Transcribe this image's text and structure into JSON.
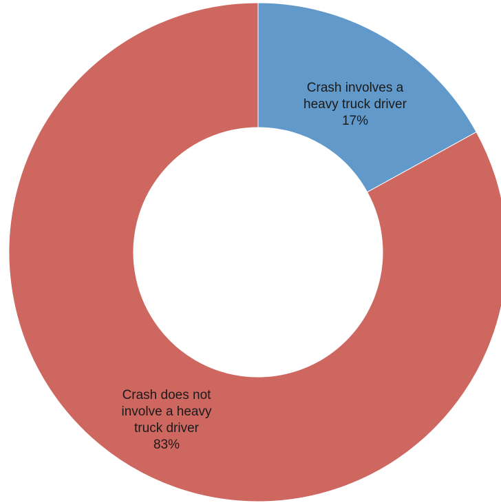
{
  "chart_data": {
    "type": "pie",
    "donut": true,
    "legend": "none",
    "slices": [
      {
        "label_lines": [
          "Crash involves a",
          "heavy truck driver"
        ],
        "value": 17,
        "value_label": "17%",
        "color": "#6199CB"
      },
      {
        "label_lines": [
          "Crash does not",
          "involve a heavy",
          "truck driver"
        ],
        "value": 83,
        "value_label": "83%",
        "color": "#CD6760"
      }
    ]
  }
}
